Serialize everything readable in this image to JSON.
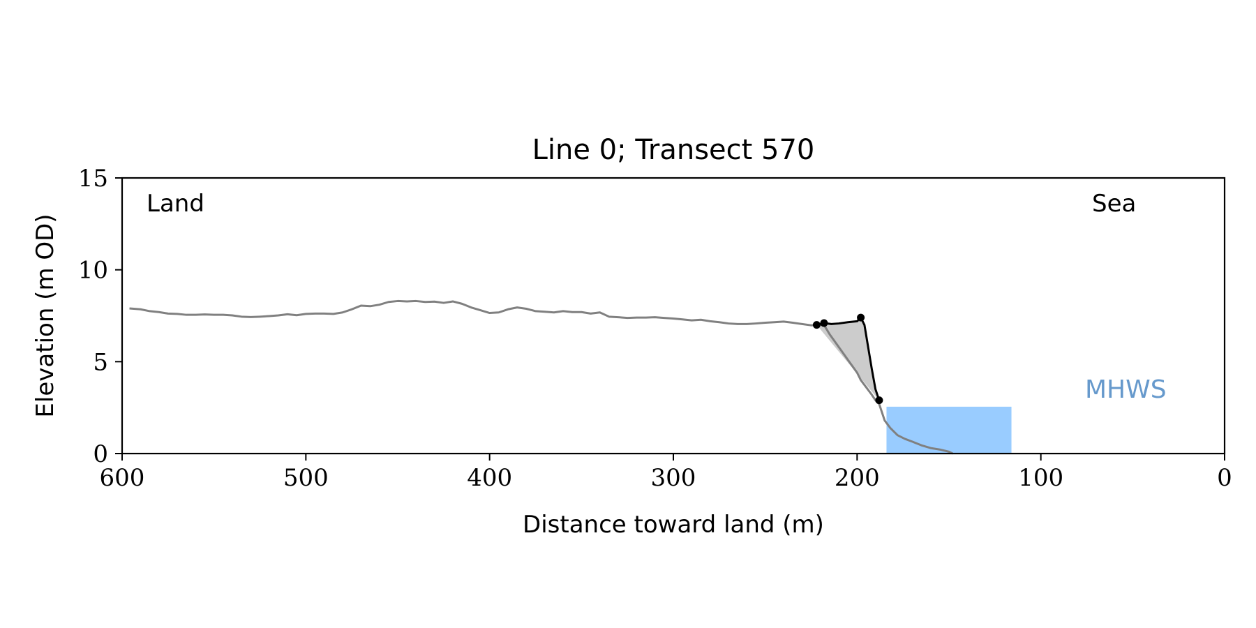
{
  "chart_data": {
    "type": "line",
    "title": "Line 0; Transect 570",
    "xlabel": "Distance toward land (m)",
    "ylabel": "Elevation (m OD)",
    "xlim": [
      600,
      0
    ],
    "ylim": [
      0,
      15
    ],
    "x_ticks": [
      600,
      500,
      400,
      300,
      200,
      100,
      0
    ],
    "y_ticks": [
      0,
      5,
      10,
      15
    ],
    "annotations": {
      "land": "Land",
      "sea": "Sea",
      "mhws": "MHWS"
    },
    "colors": {
      "profile": "#808080",
      "cliff": "#000000",
      "fill": "#cccccc",
      "mhws_fill": "#99ccff",
      "mhws_text": "#6699cc"
    },
    "series": [
      {
        "x": [
          596,
          590,
          585,
          580,
          575,
          570,
          565,
          560,
          555,
          550,
          545,
          540,
          535,
          530,
          525,
          520,
          515,
          510,
          505,
          500,
          495,
          490,
          485,
          480,
          475,
          470,
          465,
          460,
          455,
          450,
          445,
          440,
          435,
          430,
          425,
          420,
          415,
          410,
          405,
          400,
          395,
          390,
          385,
          380,
          375,
          370,
          365,
          360,
          355,
          350,
          345,
          340,
          335,
          330,
          325,
          320,
          315,
          310,
          305,
          300,
          295,
          290,
          285,
          280,
          275,
          270,
          265,
          260,
          255,
          250,
          245,
          240,
          235,
          230,
          225,
          222,
          218,
          215,
          210,
          205,
          200,
          198,
          195,
          192,
          190,
          188,
          185,
          182,
          178,
          174,
          170,
          165,
          160,
          155,
          150,
          148
        ],
        "y": [
          7.9,
          7.85,
          7.75,
          7.7,
          7.62,
          7.6,
          7.55,
          7.55,
          7.57,
          7.55,
          7.55,
          7.52,
          7.45,
          7.43,
          7.45,
          7.48,
          7.52,
          7.58,
          7.53,
          7.6,
          7.62,
          7.62,
          7.6,
          7.68,
          7.85,
          8.05,
          8.02,
          8.1,
          8.25,
          8.3,
          8.28,
          8.3,
          8.25,
          8.27,
          8.2,
          8.28,
          8.15,
          7.95,
          7.8,
          7.65,
          7.68,
          7.85,
          7.95,
          7.88,
          7.75,
          7.72,
          7.68,
          7.75,
          7.7,
          7.7,
          7.62,
          7.68,
          7.45,
          7.42,
          7.38,
          7.4,
          7.4,
          7.42,
          7.38,
          7.35,
          7.3,
          7.25,
          7.28,
          7.2,
          7.15,
          7.08,
          7.05,
          7.05,
          7.08,
          7.12,
          7.15,
          7.18,
          7.12,
          7.05,
          6.98,
          7.0,
          7.0,
          6.5,
          5.8,
          5.1,
          4.4,
          4.0,
          3.6,
          3.2,
          2.9,
          2.7,
          1.8,
          1.4,
          1.0,
          0.8,
          0.65,
          0.45,
          0.3,
          0.22,
          0.1,
          0.0
        ]
      },
      {
        "x": [
          222,
          218,
          214,
          210,
          205,
          200,
          198,
          196,
          194,
          192,
          190,
          188
        ],
        "y": [
          7.0,
          7.1,
          7.05,
          7.08,
          7.15,
          7.2,
          7.4,
          7.0,
          5.8,
          4.6,
          3.5,
          2.9
        ],
        "markers": [
          [
            222,
            7.0
          ],
          [
            218,
            7.1
          ],
          [
            198,
            7.4
          ],
          [
            188,
            2.9
          ]
        ]
      }
    ],
    "cliff_polygon_x": [
      222,
      218,
      214,
      210,
      205,
      200,
      198,
      196,
      194,
      192,
      190,
      188
    ],
    "cliff_polygon_y": [
      7.0,
      7.1,
      7.05,
      7.08,
      7.15,
      7.2,
      7.4,
      7.0,
      5.8,
      4.6,
      3.5,
      2.9
    ],
    "mhws_region": {
      "x_from": 184,
      "x_to": 116,
      "y_top": 2.55
    },
    "grid": false
  }
}
